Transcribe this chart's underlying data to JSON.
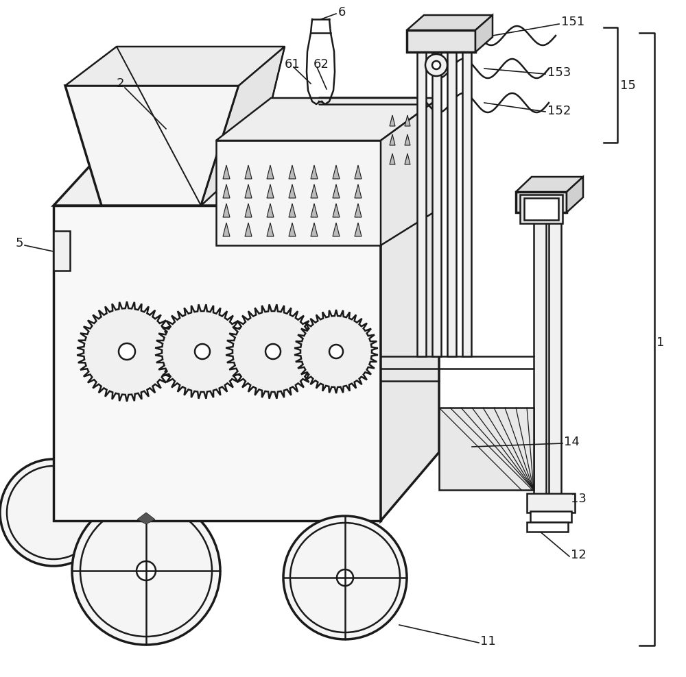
{
  "bg_color": "#ffffff",
  "lc": "#1a1a1a",
  "lw": 1.8,
  "tlw": 2.5,
  "fs": 13,
  "figw": 10.0,
  "figh": 9.88
}
